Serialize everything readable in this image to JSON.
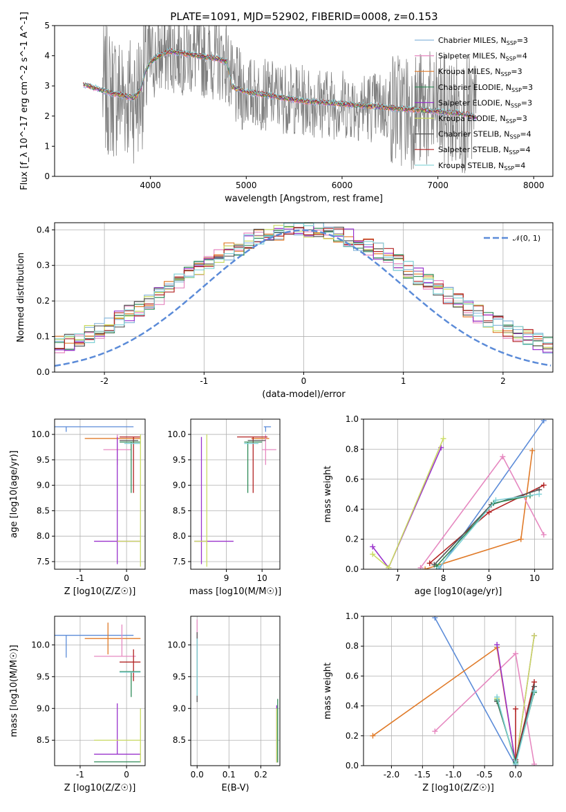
{
  "figure": {
    "title": "PLATE=1091, MJD=52902, FIBERID=0008, z=0.153"
  },
  "colors": {
    "blue": "#5b8bd8",
    "orange": "#e07a28",
    "green": "#2e8b57",
    "red": "#b22222",
    "purple": "#9932cc",
    "pink": "#e688c0",
    "gray": "#7f7f7f",
    "lime": "#cadb62",
    "cyan": "#7fd0d6",
    "lightblue": "#8ab8dc",
    "darkgray": "#555555"
  },
  "models": [
    {
      "name": "Chabrier MILES",
      "nssp": "3",
      "color": "#8ab8dc"
    },
    {
      "name": "Salpeter MILES",
      "nssp": "4",
      "color": "#e688c0"
    },
    {
      "name": "Kroupa MILES",
      "nssp": "3",
      "color": "#e07a28"
    },
    {
      "name": "Chabrier ELODIE",
      "nssp": "3",
      "color": "#2e8b57"
    },
    {
      "name": "Salpeter ELODIE",
      "nssp": "3",
      "color": "#9932cc"
    },
    {
      "name": "Kroupa ELODIE",
      "nssp": "3",
      "color": "#cadb62"
    },
    {
      "name": "Chabrier STELIB",
      "nssp": "4",
      "color": "#555555"
    },
    {
      "name": "Salpeter STELIB",
      "nssp": "4",
      "color": "#b22222"
    },
    {
      "name": "Kroupa STELIB",
      "nssp": "4",
      "color": "#7fd0d6"
    }
  ],
  "chart_data": [
    {
      "type": "line",
      "panel": "spectrum",
      "xlabel": "wavelength [Angstrom, rest frame]",
      "ylabel": "Flux [f_λ 10^-17 erg cm^-2 s^-1 A^-1]",
      "xlim": [
        3000,
        8200
      ],
      "ylim": [
        0,
        5
      ],
      "xticks": [
        4000,
        5000,
        6000,
        7000,
        8000
      ],
      "yticks": [
        0,
        1,
        2,
        3,
        4,
        5
      ],
      "data_series": {
        "name": "data",
        "color": "#7f7f7f",
        "x_range": [
          3500,
          7400
        ]
      },
      "model_curve": {
        "x": [
          3300,
          3350,
          3400,
          3450,
          3500,
          3550,
          3600,
          3700,
          3800,
          3850,
          3900,
          3950,
          4000,
          4100,
          4200,
          4300,
          4400,
          4500,
          4600,
          4700,
          4800,
          4850,
          4900,
          5000,
          5200,
          5400,
          5600,
          5800,
          6000,
          6200,
          6400,
          6600,
          6800,
          7000,
          7200,
          7300,
          7350,
          7400
        ],
        "y": [
          3.05,
          3.0,
          2.95,
          2.9,
          2.85,
          2.8,
          2.75,
          2.7,
          2.6,
          2.65,
          2.9,
          3.5,
          3.8,
          4.0,
          4.15,
          4.1,
          4.05,
          4.0,
          3.95,
          3.9,
          3.8,
          3.0,
          2.9,
          2.8,
          2.7,
          2.6,
          2.5,
          2.45,
          2.4,
          2.35,
          2.3,
          2.25,
          2.2,
          2.15,
          2.1,
          2.05,
          2.0,
          1.95
        ]
      },
      "legend": "upper-right"
    },
    {
      "type": "bar",
      "panel": "residual-histogram",
      "xlabel": "(data-model)/error",
      "ylabel": "Normed distribution",
      "xlim": [
        -2.5,
        2.5
      ],
      "ylim": [
        0,
        0.42
      ],
      "xticks": [
        -2,
        -1,
        0,
        1,
        2
      ],
      "yticks": [
        0.0,
        0.1,
        0.2,
        0.3,
        0.4
      ],
      "bin_width": 0.1,
      "base_curve": "gaussian",
      "reference": {
        "name": "𝒩(0, 1)",
        "type": "gaussian",
        "mean": 0,
        "sigma": 1,
        "color": "#5b8bd8"
      },
      "legend": "upper-right"
    },
    {
      "type": "scatter",
      "panel": "age-vs-Z",
      "xlabel": "Z [log10(Z/Z☉)]",
      "ylabel": "age  [log10(age/yr)]",
      "xlim": [
        -1.55,
        0.4
      ],
      "ylim": [
        7.35,
        10.3
      ],
      "xticks": [
        -1,
        0
      ],
      "yticks": [
        7.5,
        8.0,
        8.5,
        9.0,
        9.5,
        10.0
      ],
      "errorbars": [
        {
          "color": "#5b8bd8",
          "x": -1.3,
          "y": 10.15,
          "xerr": [
            0.25,
            1.45
          ],
          "yerr": [
            0.1,
            0.0
          ]
        },
        {
          "color": "#e07a28",
          "x": 0.2,
          "y": 9.92,
          "xerr": [
            1.1,
            0.1
          ],
          "yerr": [
            0.0,
            0.0
          ]
        },
        {
          "color": "#e688c0",
          "x": -0.2,
          "y": 9.7,
          "xerr": [
            0.3,
            0.3
          ],
          "yerr": [
            0.3,
            0.3
          ]
        },
        {
          "color": "#b22222",
          "x": 0.15,
          "y": 9.95,
          "xerr": [
            0.3,
            0.15
          ],
          "yerr": [
            1.1,
            0.0
          ]
        },
        {
          "color": "#2e8b57",
          "x": 0.1,
          "y": 9.85,
          "xerr": [
            0.25,
            0.2
          ],
          "yerr": [
            1.0,
            0.0
          ]
        },
        {
          "color": "#555555",
          "x": 0.15,
          "y": 9.88,
          "xerr": [
            0.3,
            0.1
          ],
          "yerr": [
            0.0,
            0.0
          ]
        },
        {
          "color": "#7fd0d6",
          "x": 0.2,
          "y": 9.82,
          "xerr": [
            0.25,
            0.1
          ],
          "yerr": [
            0.0,
            0.0
          ]
        },
        {
          "color": "#9932cc",
          "x": -0.2,
          "y": 7.9,
          "xerr": [
            0.5,
            0.5
          ],
          "yerr": [
            0.45,
            2.05
          ]
        },
        {
          "color": "#cadb62",
          "x": 0.3,
          "y": 7.9,
          "xerr": [
            0.5,
            0.0
          ],
          "yerr": [
            0.5,
            2.1
          ]
        }
      ]
    },
    {
      "type": "scatter",
      "panel": "age-vs-mass",
      "xlabel": "mass [log10(M/M☉)]",
      "ylabel": "",
      "xlim": [
        8.0,
        10.5
      ],
      "ylim": [
        7.35,
        10.3
      ],
      "xticks": [
        9,
        10
      ],
      "yticks": [
        7.5,
        8.0,
        8.5,
        9.0,
        9.5,
        10.0
      ],
      "errorbars": [
        {
          "color": "#5b8bd8",
          "x": 10.1,
          "y": 10.15,
          "xerr": [
            0.05,
            0.15
          ],
          "yerr": [
            0.1,
            0.0
          ]
        },
        {
          "color": "#e07a28",
          "x": 10.1,
          "y": 9.92,
          "xerr": [
            0.4,
            0.1
          ],
          "yerr": [
            0.0,
            0.0
          ]
        },
        {
          "color": "#e688c0",
          "x": 10.1,
          "y": 9.7,
          "xerr": [
            0.1,
            0.3
          ],
          "yerr": [
            0.3,
            0.3
          ]
        },
        {
          "color": "#b22222",
          "x": 9.75,
          "y": 9.95,
          "xerr": [
            0.45,
            0.4
          ],
          "yerr": [
            1.1,
            0.0
          ]
        },
        {
          "color": "#2e8b57",
          "x": 9.6,
          "y": 9.85,
          "xerr": [
            0.1,
            0.4
          ],
          "yerr": [
            1.0,
            0.0
          ]
        },
        {
          "color": "#555555",
          "x": 9.9,
          "y": 9.88,
          "xerr": [
            0.3,
            0.2
          ],
          "yerr": [
            0.0,
            0.0
          ]
        },
        {
          "color": "#7fd0d6",
          "x": 9.6,
          "y": 9.82,
          "xerr": [
            0.1,
            0.3
          ],
          "yerr": [
            0.0,
            0.0
          ]
        },
        {
          "color": "#9932cc",
          "x": 8.3,
          "y": 7.9,
          "xerr": [
            0.2,
            0.9
          ],
          "yerr": [
            0.45,
            2.05
          ]
        },
        {
          "color": "#cadb62",
          "x": 8.45,
          "y": 7.9,
          "xerr": [
            0.35,
            0.0
          ],
          "yerr": [
            0.5,
            2.1
          ]
        }
      ]
    },
    {
      "type": "line",
      "panel": "mass-weight-vs-age",
      "xlabel": "age  [log10(age/yr)]",
      "ylabel": "mass weight",
      "xlim": [
        6.25,
        10.4
      ],
      "ylim": [
        0,
        1.0
      ],
      "xticks": [
        7,
        8,
        9,
        10
      ],
      "yticks": [
        0.0,
        0.2,
        0.4,
        0.6,
        0.8,
        1.0
      ],
      "series": [
        {
          "color": "#5b8bd8",
          "x": [
            7.9,
            10.2
          ],
          "y": [
            0.0,
            0.99
          ]
        },
        {
          "color": "#e07a28",
          "x": [
            7.6,
            9.7,
            9.95
          ],
          "y": [
            0.0,
            0.2,
            0.79
          ]
        },
        {
          "color": "#e688c0",
          "x": [
            7.5,
            9.3,
            10.2
          ],
          "y": [
            0.01,
            0.75,
            0.23
          ]
        },
        {
          "color": "#9932cc",
          "x": [
            6.45,
            6.8,
            7.95
          ],
          "y": [
            0.15,
            0.01,
            0.81
          ]
        },
        {
          "color": "#cadb62",
          "x": [
            6.45,
            6.8,
            8.0
          ],
          "y": [
            0.1,
            0.01,
            0.87
          ]
        },
        {
          "color": "#b22222",
          "x": [
            7.7,
            9.0,
            10.2
          ],
          "y": [
            0.04,
            0.38,
            0.56
          ]
        },
        {
          "color": "#555555",
          "x": [
            7.8,
            9.05,
            10.1
          ],
          "y": [
            0.03,
            0.43,
            0.53
          ]
        },
        {
          "color": "#2e8b57",
          "x": [
            7.85,
            9.1,
            9.9
          ],
          "y": [
            0.02,
            0.44,
            0.49
          ]
        },
        {
          "color": "#7fd0d6",
          "x": [
            7.9,
            9.15,
            10.1
          ],
          "y": [
            0.01,
            0.46,
            0.5
          ]
        }
      ]
    },
    {
      "type": "scatter",
      "panel": "mass-vs-Z",
      "xlabel": "Z [log10(Z/Z☉)]",
      "ylabel": "mass [log10(M/M☉)]",
      "xlim": [
        -1.55,
        0.4
      ],
      "ylim": [
        8.1,
        10.45
      ],
      "xticks": [
        -1,
        0
      ],
      "yticks": [
        8.5,
        9.0,
        9.5,
        10.0
      ],
      "errorbars": [
        {
          "color": "#5b8bd8",
          "x": -1.3,
          "y": 10.15,
          "xerr": [
            0.25,
            1.45
          ],
          "yerr": [
            0.35,
            0.0
          ]
        },
        {
          "color": "#e07a28",
          "x": -0.4,
          "y": 10.1,
          "xerr": [
            0.5,
            0.7
          ],
          "yerr": [
            0.25,
            0.25
          ]
        },
        {
          "color": "#e688c0",
          "x": -0.1,
          "y": 9.82,
          "xerr": [
            0.6,
            0.3
          ],
          "yerr": [
            0.0,
            0.5
          ]
        },
        {
          "color": "#b22222",
          "x": 0.15,
          "y": 9.73,
          "xerr": [
            0.3,
            0.15
          ],
          "yerr": [
            0.3,
            0.2
          ]
        },
        {
          "color": "#2e8b57",
          "x": 0.1,
          "y": 9.58,
          "xerr": [
            0.25,
            0.2
          ],
          "yerr": [
            0.4,
            0.0
          ]
        },
        {
          "color": "#7fd0d6",
          "x": 0.05,
          "y": 9.57,
          "xerr": [
            0.2,
            0.25
          ],
          "yerr": [
            0.0,
            0.0
          ]
        },
        {
          "color": "#9932cc",
          "x": -0.2,
          "y": 8.28,
          "xerr": [
            0.5,
            0.5
          ],
          "yerr": [
            0.0,
            0.8
          ]
        },
        {
          "color": "#cadb62",
          "x": -0.2,
          "y": 8.5,
          "xerr": [
            0.5,
            0.5
          ],
          "yerr": [
            0.0,
            0.0
          ]
        },
        {
          "color": "#2e8b57",
          "x": -0.2,
          "y": 8.16,
          "xerr": [
            0.5,
            0.5
          ],
          "yerr": [
            0.0,
            0.0
          ]
        },
        {
          "color": "#cadb62",
          "x": 0.3,
          "y": 8.5,
          "xerr": [
            0.0,
            0.0
          ],
          "yerr": [
            0.35,
            0.5
          ]
        }
      ]
    },
    {
      "type": "scatter",
      "panel": "mass-vs-EBV",
      "xlabel": "E(B-V)",
      "ylabel": "",
      "xlim": [
        -0.02,
        0.26
      ],
      "ylim": [
        8.1,
        10.45
      ],
      "xticks": [
        0.0,
        0.1,
        0.2
      ],
      "yticks": [
        8.5,
        9.0,
        9.5,
        10.0
      ],
      "errorbars": [
        {
          "color": "#e688c0",
          "x": 0.0,
          "y": 10.1,
          "xerr": [
            0.0,
            0.0
          ],
          "yerr": [
            0.3,
            0.3
          ]
        },
        {
          "color": "#555555",
          "x": 0.0,
          "y": 9.7,
          "xerr": [
            0.0,
            0.0
          ],
          "yerr": [
            0.6,
            0.5
          ]
        },
        {
          "color": "#7fd0d6",
          "x": 0.0,
          "y": 9.6,
          "xerr": [
            0.0,
            0.0
          ],
          "yerr": [
            0.4,
            0.5
          ]
        },
        {
          "color": "#9932cc",
          "x": 0.25,
          "y": 8.6,
          "xerr": [
            0.0,
            0.0
          ],
          "yerr": [
            0.45,
            0.45
          ]
        },
        {
          "color": "#cadb62",
          "x": 0.25,
          "y": 8.5,
          "xerr": [
            0.0,
            0.0
          ],
          "yerr": [
            0.35,
            0.5
          ]
        },
        {
          "color": "#2e8b57",
          "x": 0.253,
          "y": 8.65,
          "xerr": [
            0.0,
            0.0
          ],
          "yerr": [
            0.5,
            0.5
          ]
        }
      ]
    },
    {
      "type": "line",
      "panel": "mass-weight-vs-Z",
      "xlabel": "Z [log10(Z/Z☉)]",
      "ylabel": "mass weight",
      "xlim": [
        -2.45,
        0.6
      ],
      "ylim": [
        0,
        1.0
      ],
      "xticks": [
        -2.0,
        -1.5,
        -1.0,
        -0.5,
        0.0
      ],
      "yticks": [
        0.0,
        0.2,
        0.4,
        0.6,
        0.8,
        1.0
      ],
      "series": [
        {
          "color": "#5b8bd8",
          "x": [
            -1.3,
            0.0
          ],
          "y": [
            0.99,
            0.0
          ]
        },
        {
          "color": "#e07a28",
          "x": [
            -2.3,
            -0.3,
            0.0
          ],
          "y": [
            0.2,
            0.79,
            0.01
          ]
        },
        {
          "color": "#e688c0",
          "x": [
            -1.3,
            0.0,
            0.3
          ],
          "y": [
            0.23,
            0.75,
            0.01
          ]
        },
        {
          "color": "#9932cc",
          "x": [
            -0.3,
            0.0,
            0.3
          ],
          "y": [
            0.81,
            0.01,
            0.87
          ]
        },
        {
          "color": "#cadb62",
          "x": [
            -0.3,
            0.0,
            0.3
          ],
          "y": [
            0.45,
            0.01,
            0.87
          ]
        },
        {
          "color": "#b22222",
          "x": [
            0.0,
            0.0,
            0.3
          ],
          "y": [
            0.38,
            0.04,
            0.56
          ]
        },
        {
          "color": "#555555",
          "x": [
            -0.3,
            0.0,
            0.3
          ],
          "y": [
            0.43,
            0.03,
            0.53
          ]
        },
        {
          "color": "#2e8b57",
          "x": [
            -0.3,
            0.0,
            0.3
          ],
          "y": [
            0.44,
            0.02,
            0.49
          ]
        },
        {
          "color": "#7fd0d6",
          "x": [
            -0.3,
            0.0,
            0.3
          ],
          "y": [
            0.46,
            0.01,
            0.5
          ]
        }
      ]
    }
  ]
}
